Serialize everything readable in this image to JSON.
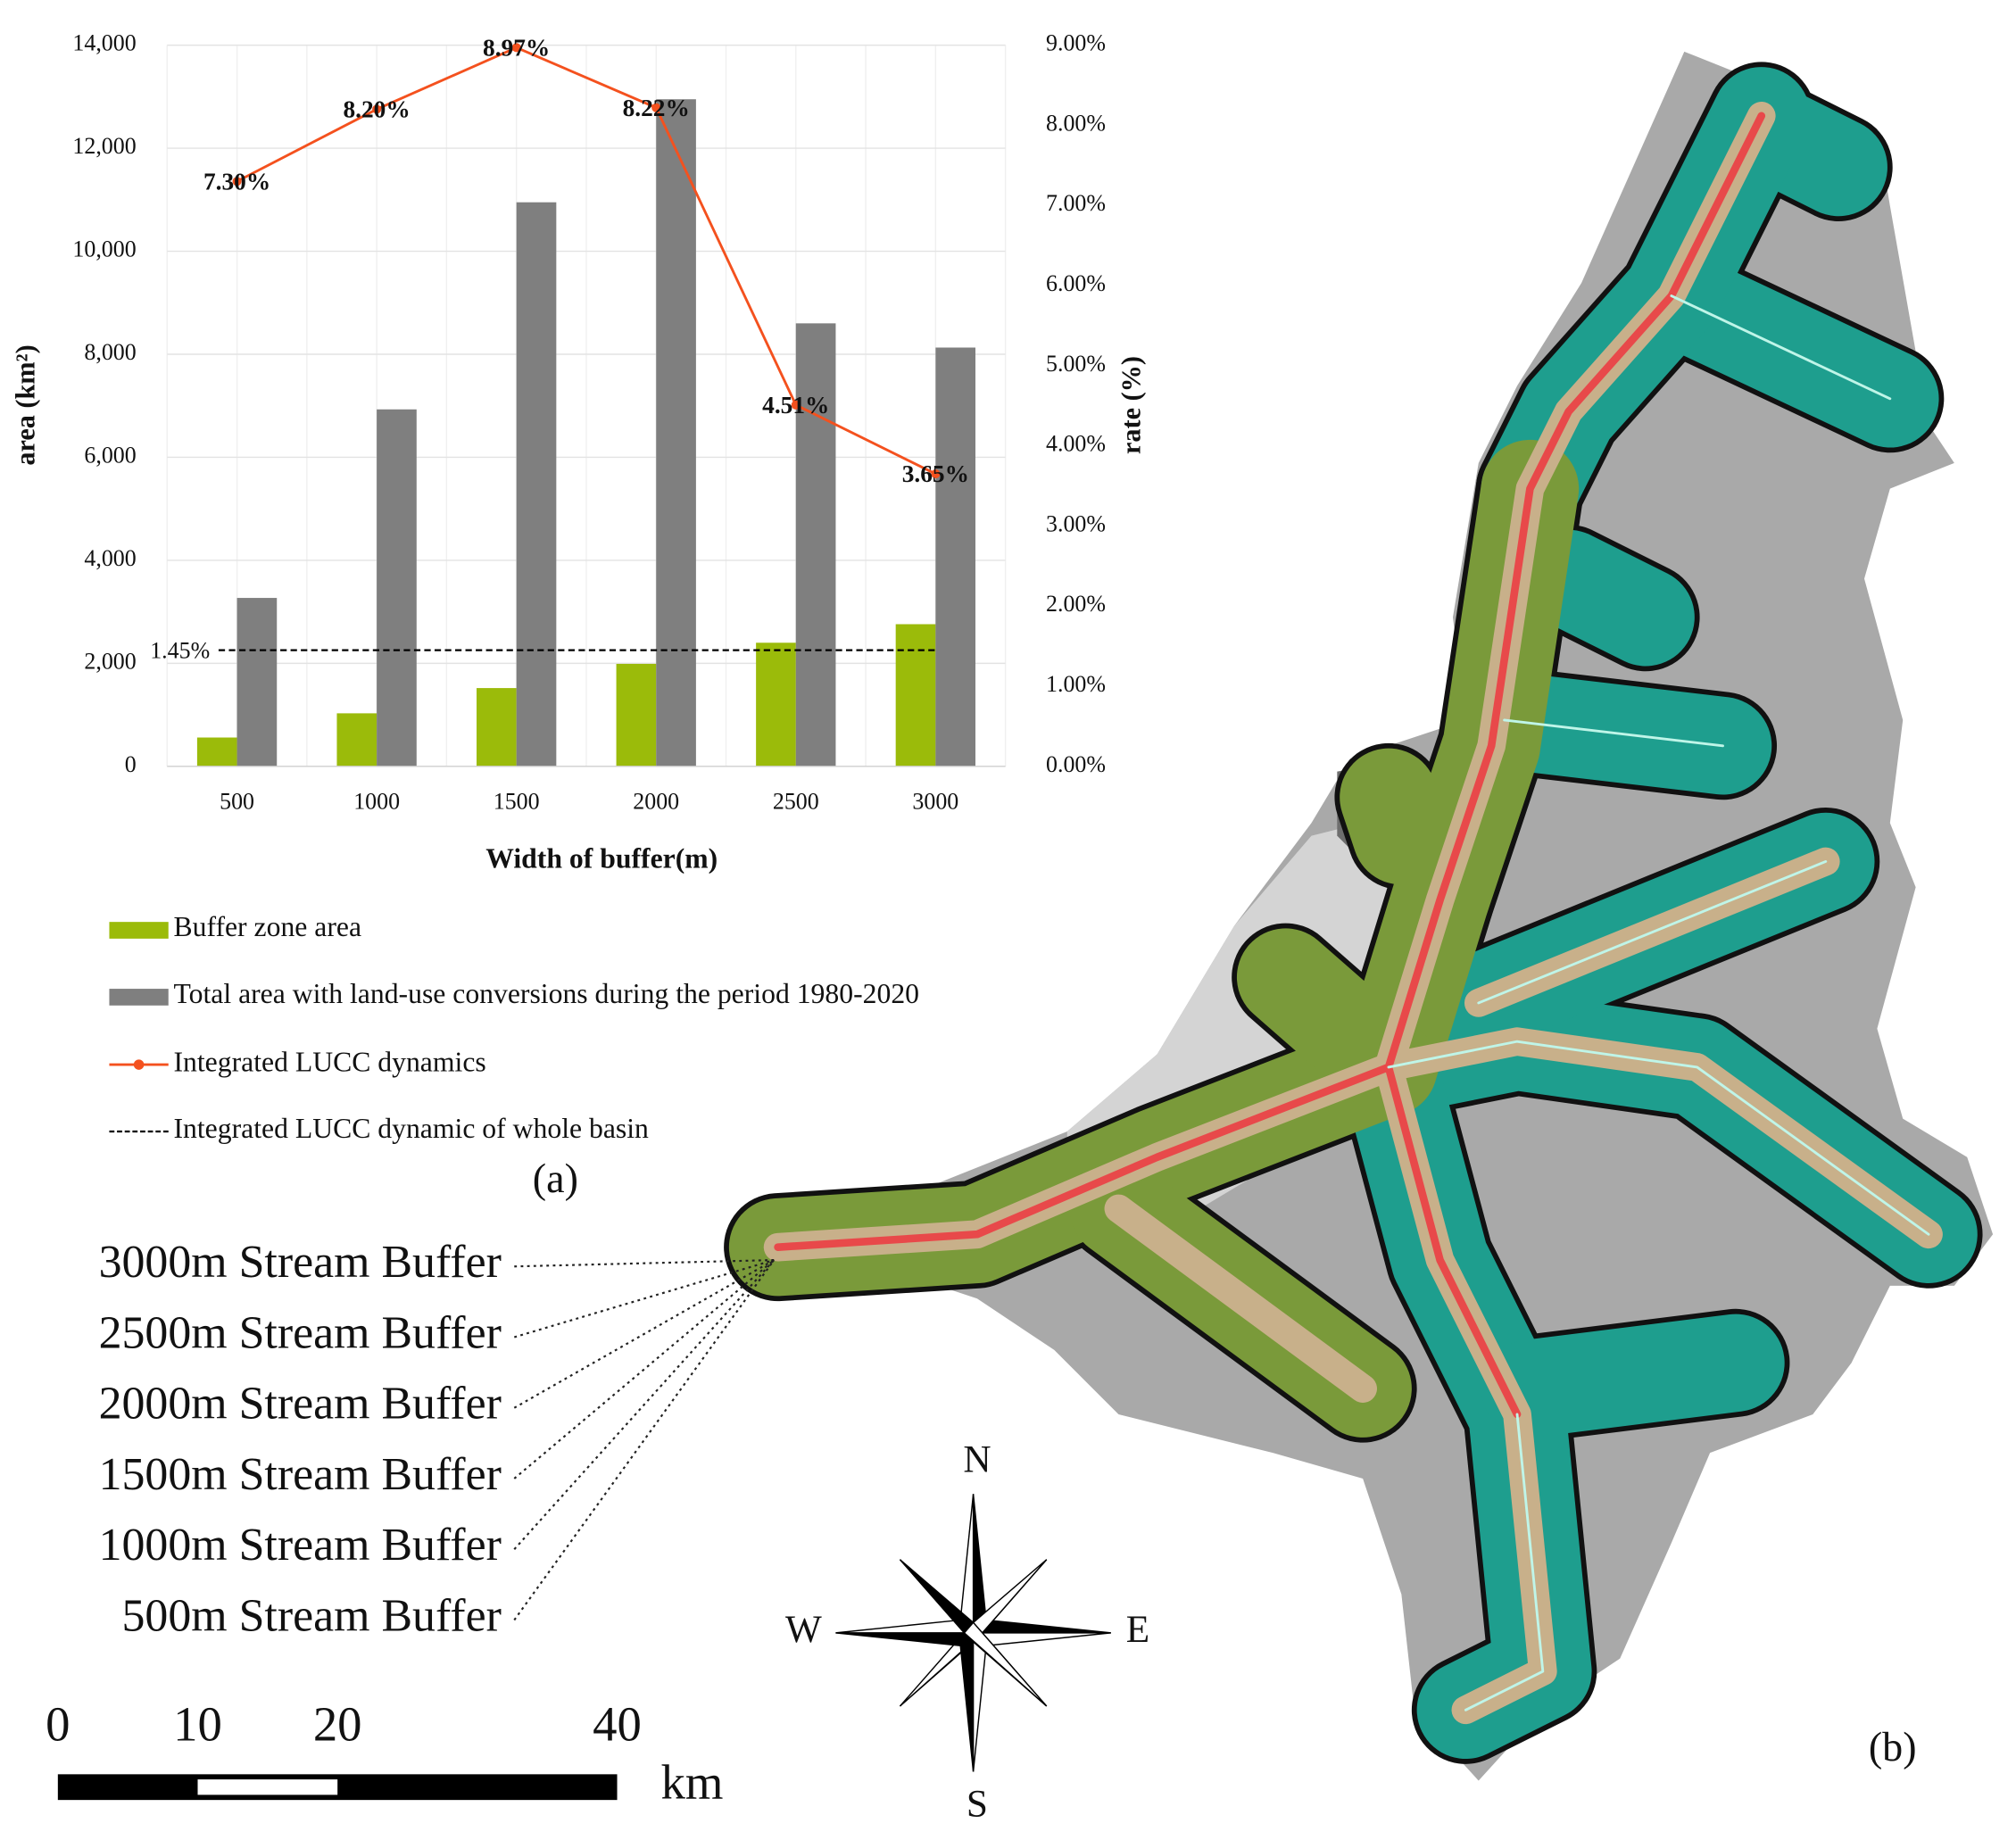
{
  "chart_data": {
    "type": "bar",
    "categories": [
      "500",
      "1000",
      "1500",
      "2000",
      "2500",
      "3000"
    ],
    "x_label": "Width of buffer(m)",
    "y_label": "area (km²)",
    "y2_label": "rate (%)",
    "ylim": [
      0,
      14000
    ],
    "yticks": [
      0,
      {
        "value": 2000,
        "label": "2,000"
      },
      {
        "value": 4000,
        "label": "4,000"
      },
      {
        "value": 6000,
        "label": "6,000"
      },
      {
        "value": 8000,
        "label": "8,000"
      },
      {
        "value": 10000,
        "label": "10,000"
      },
      {
        "value": 12000,
        "label": "12,000"
      },
      {
        "value": 14000,
        "label": "14,000"
      }
    ],
    "y2lim": [
      0,
      9
    ],
    "y2ticks": [
      {
        "value": 0,
        "label": "0.00%"
      },
      {
        "value": 1,
        "label": "1.00%"
      },
      {
        "value": 2,
        "label": "2.00%"
      },
      {
        "value": 3,
        "label": "3.00%"
      },
      {
        "value": 4,
        "label": "4.00%"
      },
      {
        "value": 5,
        "label": "5.00%"
      },
      {
        "value": 6,
        "label": "6.00%"
      },
      {
        "value": 7,
        "label": "7.00%"
      },
      {
        "value": 8,
        "label": "8.00%"
      },
      {
        "value": 9,
        "label": "9.00%"
      }
    ],
    "grid": true,
    "series": [
      {
        "name": "Buffer zone area",
        "type": "bar",
        "color": "#9bbb0a",
        "values": [
          560,
          1030,
          1520,
          1990,
          2400,
          2760
        ]
      },
      {
        "name": "Total area with land-use conversions during the period 1980-2020",
        "type": "bar",
        "color": "#7f7f7f",
        "values": [
          3270,
          6930,
          10950,
          12950,
          8600,
          8130
        ]
      },
      {
        "name": "Integrated LUCC dynamics",
        "type": "line",
        "axis": "y2",
        "color": "#f4511e",
        "values": [
          7.3,
          8.2,
          8.97,
          8.22,
          4.51,
          3.65
        ],
        "value_labels": [
          "7.30%",
          "8.20%",
          "8.97%",
          "8.22%",
          "4.51%",
          "3.65%"
        ]
      }
    ],
    "reference_line": {
      "name": "Integrated LUCC dynamic of whole basin",
      "axis": "y2",
      "value": 1.45,
      "value_label": "1.45%",
      "color": "#000000"
    }
  },
  "panels": [
    "(a)",
    "(b)"
  ],
  "map": {
    "buffer_labels": [
      "3000m Stream Buffer",
      "2500m Stream Buffer",
      "2000m Stream Buffer",
      "1500m Stream Buffer",
      "1000m Stream Buffer",
      "500m Stream Buffer"
    ],
    "compass": {
      "north": "N",
      "south": "S",
      "west": "W",
      "east": "E"
    },
    "scale_labels": [
      0,
      10,
      20,
      40
    ],
    "scale_unit": "km"
  }
}
